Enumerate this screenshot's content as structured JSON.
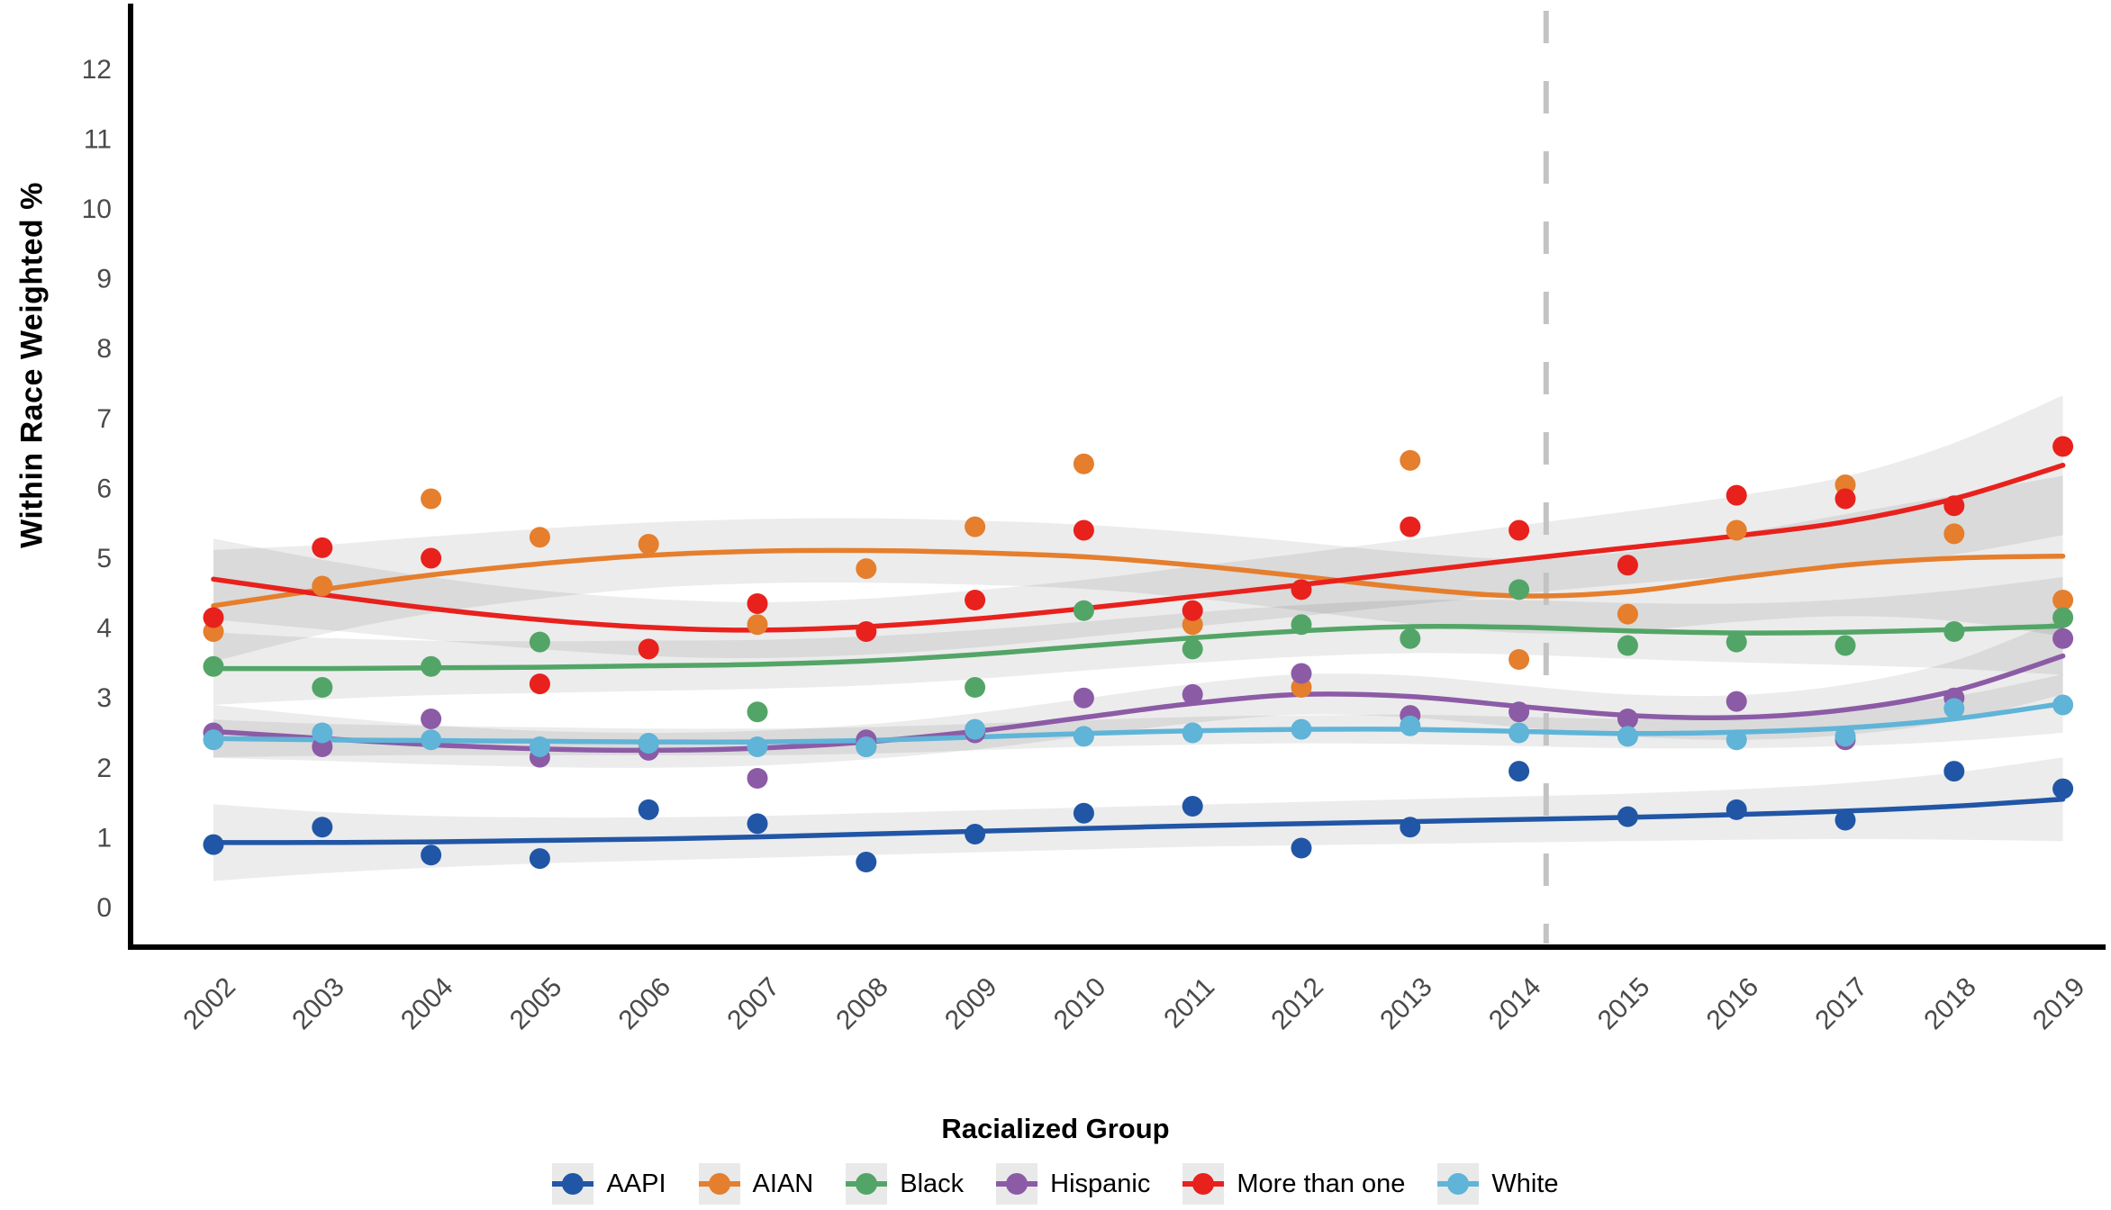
{
  "chart_data": {
    "type": "scatter",
    "subtype": "scatter-with-loess-smooth-and-confidence-bands",
    "title": "",
    "xlabel": "",
    "ylabel": "Within Race Weighted %",
    "ylim": [
      0,
      12
    ],
    "y_ticks": [
      0,
      1,
      2,
      3,
      4,
      5,
      6,
      7,
      8,
      9,
      10,
      11,
      12
    ],
    "x_tick_labels_rotation_deg": 45,
    "grid": "off",
    "background": "#ffffff",
    "axis_color": "#000000",
    "tick_label_color": "#4a4a4a",
    "band_fill": "rgba(0,0,0,0.075)",
    "marker_line": {
      "x_year": 2014.25,
      "color": "#c3c3c3",
      "style": "dashed",
      "meaning": "vertical reference line between 2014 and 2015"
    },
    "years": [
      2002,
      2003,
      2004,
      2005,
      2006,
      2007,
      2008,
      2009,
      2010,
      2011,
      2012,
      2013,
      2014,
      2015,
      2016,
      2017,
      2018,
      2019
    ],
    "series": [
      {
        "name": "AAPI",
        "color": "#2156A6",
        "points": [
          0.9,
          1.15,
          0.75,
          0.7,
          1.4,
          1.2,
          0.65,
          1.05,
          1.35,
          1.45,
          0.85,
          1.15,
          1.95,
          1.3,
          1.4,
          1.25,
          1.95,
          1.7
        ],
        "smooth_line": [
          0.93,
          0.93,
          0.94,
          0.96,
          0.98,
          1.01,
          1.05,
          1.09,
          1.13,
          1.17,
          1.2,
          1.23,
          1.26,
          1.29,
          1.33,
          1.38,
          1.45,
          1.55
        ],
        "band_halfwidth": [
          0.55,
          0.44,
          0.37,
          0.33,
          0.31,
          0.3,
          0.3,
          0.3,
          0.3,
          0.3,
          0.31,
          0.32,
          0.33,
          0.34,
          0.36,
          0.4,
          0.48,
          0.6
        ]
      },
      {
        "name": "AIAN",
        "color": "#E57E2D",
        "points": [
          3.95,
          4.6,
          5.85,
          5.3,
          5.2,
          4.05,
          4.85,
          5.45,
          6.35,
          4.05,
          3.15,
          6.4,
          3.55,
          4.2,
          5.4,
          6.05,
          5.35,
          4.4
        ],
        "smooth_line": [
          4.32,
          4.55,
          4.76,
          4.92,
          5.04,
          5.1,
          5.11,
          5.08,
          5.02,
          4.9,
          4.74,
          4.57,
          4.46,
          4.52,
          4.72,
          4.9,
          5.0,
          5.03
        ],
        "band_halfwidth": [
          0.8,
          0.64,
          0.55,
          0.5,
          0.47,
          0.46,
          0.46,
          0.46,
          0.46,
          0.47,
          0.49,
          0.51,
          0.53,
          0.57,
          0.63,
          0.73,
          0.9,
          1.15
        ]
      },
      {
        "name": "Black",
        "color": "#53A567",
        "points": [
          3.45,
          3.15,
          3.45,
          3.8,
          2.35,
          2.8,
          2.3,
          3.15,
          4.25,
          3.7,
          4.05,
          3.85,
          4.55,
          3.75,
          3.8,
          3.75,
          3.95,
          4.15
        ],
        "smooth_line": [
          3.42,
          3.42,
          3.43,
          3.44,
          3.46,
          3.48,
          3.53,
          3.62,
          3.74,
          3.86,
          3.96,
          4.02,
          4.01,
          3.96,
          3.93,
          3.94,
          3.98,
          4.03
        ],
        "band_halfwidth": [
          0.52,
          0.44,
          0.39,
          0.37,
          0.36,
          0.35,
          0.35,
          0.35,
          0.35,
          0.36,
          0.37,
          0.38,
          0.39,
          0.4,
          0.42,
          0.47,
          0.56,
          0.7
        ]
      },
      {
        "name": "Hispanic",
        "color": "#8C5BA6",
        "points": [
          2.5,
          2.3,
          2.7,
          2.15,
          2.25,
          1.85,
          2.4,
          2.5,
          3.0,
          3.05,
          3.35,
          2.75,
          2.8,
          2.7,
          2.95,
          2.4,
          3.0,
          3.85
        ],
        "smooth_line": [
          2.52,
          2.42,
          2.33,
          2.27,
          2.25,
          2.28,
          2.37,
          2.52,
          2.72,
          2.92,
          3.05,
          3.02,
          2.88,
          2.75,
          2.72,
          2.83,
          3.1,
          3.6
        ],
        "band_halfwidth": [
          0.38,
          0.32,
          0.28,
          0.26,
          0.25,
          0.25,
          0.25,
          0.26,
          0.27,
          0.28,
          0.29,
          0.3,
          0.3,
          0.3,
          0.32,
          0.36,
          0.43,
          0.55
        ]
      },
      {
        "name": "More than one",
        "color": "#E8211D",
        "points": [
          4.15,
          5.15,
          5.0,
          3.2,
          3.7,
          4.35,
          3.95,
          4.4,
          5.4,
          4.25,
          4.55,
          5.45,
          5.4,
          4.9,
          5.9,
          5.85,
          5.75,
          6.6
        ],
        "smooth_line": [
          4.7,
          4.48,
          4.28,
          4.12,
          4.01,
          3.97,
          4.02,
          4.13,
          4.28,
          4.45,
          4.62,
          4.8,
          4.98,
          5.15,
          5.32,
          5.52,
          5.85,
          6.33
        ],
        "band_halfwidth": [
          0.58,
          0.5,
          0.45,
          0.42,
          0.41,
          0.4,
          0.4,
          0.41,
          0.41,
          0.43,
          0.45,
          0.47,
          0.49,
          0.52,
          0.57,
          0.65,
          0.8,
          1.0
        ]
      },
      {
        "name": "White",
        "color": "#5FB4D8",
        "points": [
          2.4,
          2.5,
          2.4,
          2.3,
          2.35,
          2.3,
          2.3,
          2.55,
          2.45,
          2.5,
          2.55,
          2.6,
          2.5,
          2.45,
          2.4,
          2.45,
          2.85,
          2.9
        ],
        "smooth_line": [
          2.42,
          2.4,
          2.39,
          2.38,
          2.37,
          2.37,
          2.39,
          2.44,
          2.49,
          2.53,
          2.55,
          2.55,
          2.52,
          2.49,
          2.51,
          2.57,
          2.7,
          2.92
        ],
        "band_halfwidth": [
          0.27,
          0.23,
          0.21,
          0.2,
          0.19,
          0.19,
          0.19,
          0.19,
          0.19,
          0.2,
          0.2,
          0.21,
          0.21,
          0.21,
          0.23,
          0.26,
          0.32,
          0.42
        ]
      }
    ],
    "legend": {
      "position": "bottom",
      "title": "Racialized Group",
      "items": [
        {
          "label": "AAPI",
          "color": "#2156A6"
        },
        {
          "label": "AIAN",
          "color": "#E57E2D"
        },
        {
          "label": "Black",
          "color": "#53A567"
        },
        {
          "label": "Hispanic",
          "color": "#8C5BA6"
        },
        {
          "label": "More than one",
          "color": "#E8211D"
        },
        {
          "label": "White",
          "color": "#5FB4D8"
        }
      ]
    }
  }
}
